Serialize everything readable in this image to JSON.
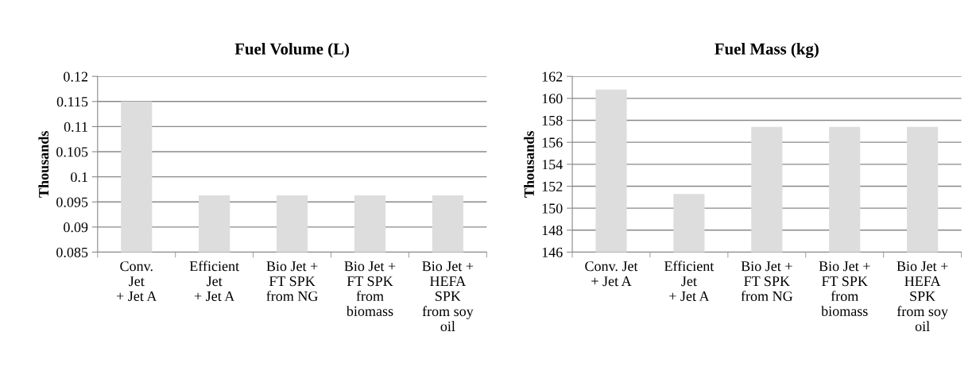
{
  "chart_data": [
    {
      "type": "bar",
      "title": "Fuel Volume (L)",
      "ylabel": "Thousands",
      "categories": [
        "Conv.\nJet\n+ Jet A",
        "Efficient\nJet\n+ Jet A",
        "Bio Jet +\nFT SPK\nfrom NG",
        "Bio Jet +\nFT SPK\nfrom\nbiomass",
        "Bio Jet +\nHEFA\nSPK\nfrom soy\noil"
      ],
      "values": [
        0.115,
        0.0963,
        0.0963,
        0.0963,
        0.0963
      ],
      "color": "#dddddd",
      "ylim": [
        0.085,
        0.12
      ],
      "yticks": [
        0.085,
        0.09,
        0.095,
        0.1,
        0.105,
        0.11,
        0.115,
        0.12
      ],
      "grid": "y"
    },
    {
      "type": "bar",
      "title": "Fuel Mass (kg)",
      "ylabel": "Thousands",
      "categories": [
        "Conv. Jet\n+ Jet A",
        "Efficient\nJet\n+ Jet A",
        "Bio Jet +\nFT SPK\nfrom NG",
        "Bio Jet +\nFT SPK\nfrom\nbiomass",
        "Bio Jet +\nHEFA\nSPK\nfrom soy\noil"
      ],
      "values": [
        160.8,
        151.3,
        157.4,
        157.4,
        157.4
      ],
      "color": "#dddddd",
      "ylim": [
        146,
        162
      ],
      "yticks": [
        146,
        148,
        150,
        152,
        154,
        156,
        158,
        160,
        162
      ],
      "grid": "y"
    }
  ]
}
